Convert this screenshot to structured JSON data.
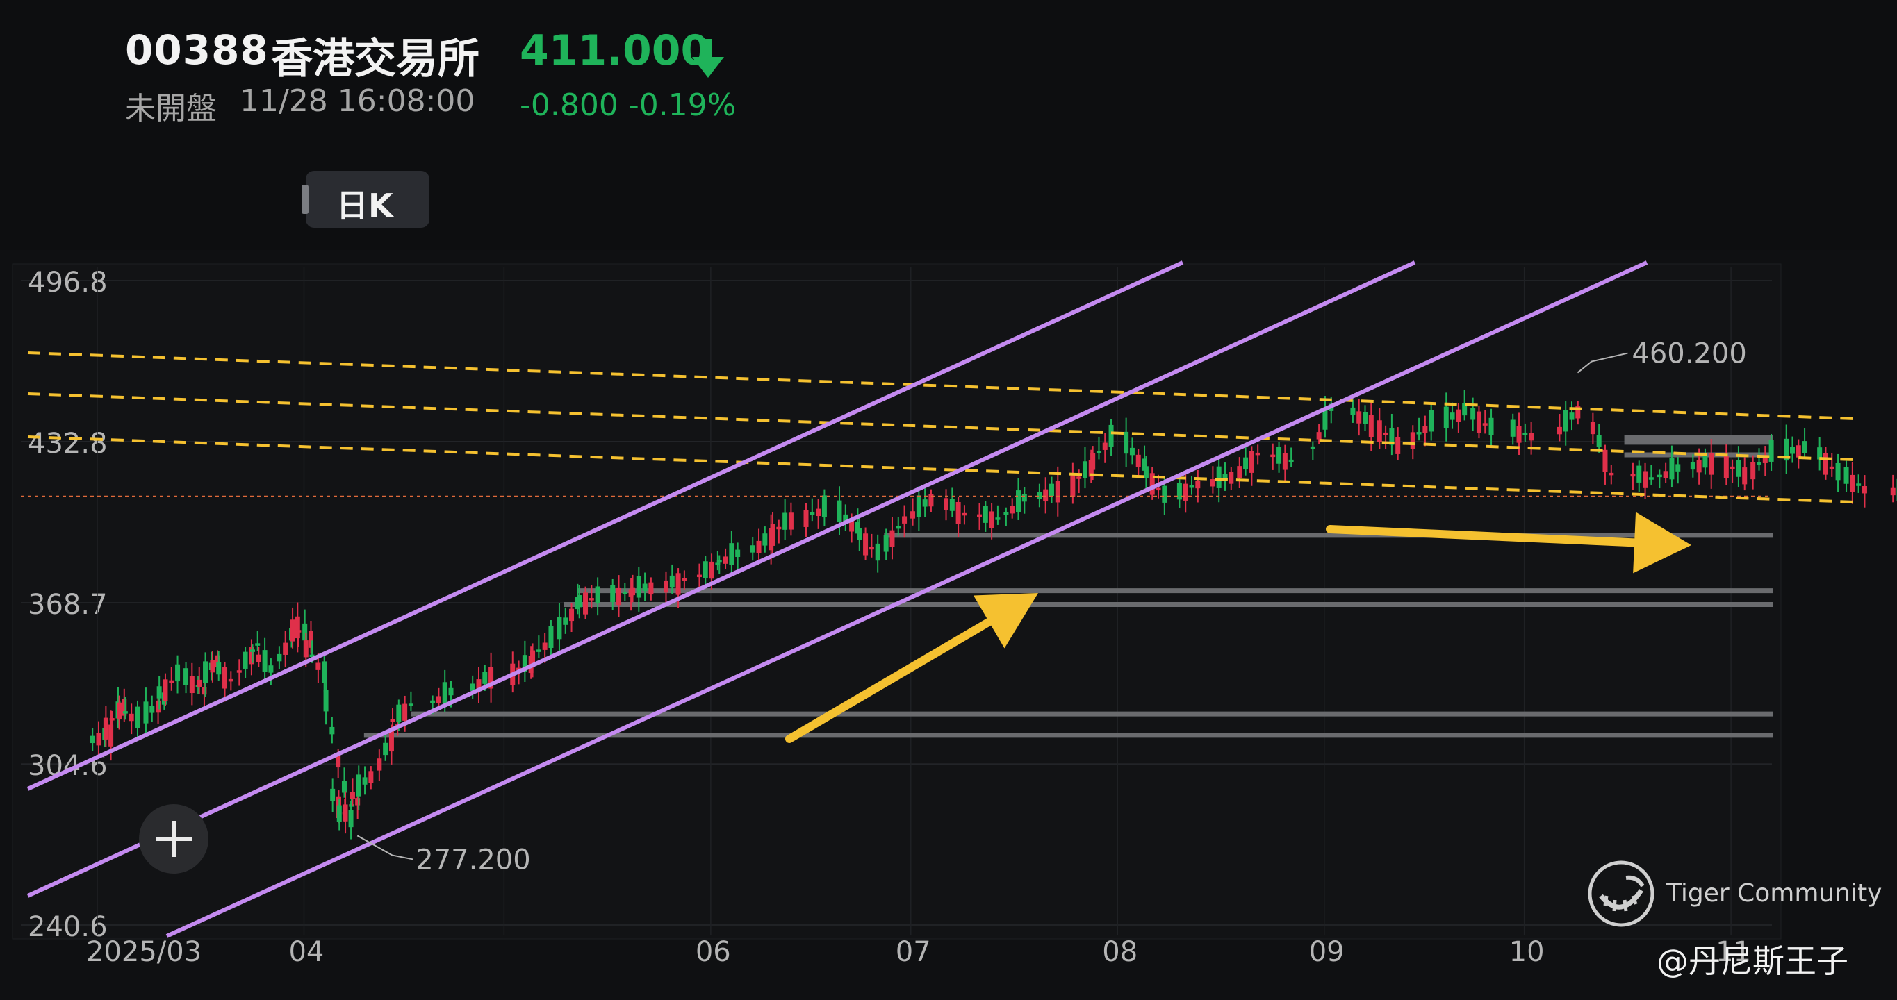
{
  "header": {
    "code": "00388",
    "name": "香港交易所",
    "status": "未開盤",
    "datetime": "11/28 16:08:00",
    "price": "411.000",
    "change": "-0.800 -0.19%",
    "period_chip": "日K",
    "price_color": "#1fb35a"
  },
  "watermark": {
    "text": "Tiger Community",
    "credit": "@丹尼斯王子"
  },
  "icons": {
    "add": "plus-icon",
    "trend": "arrow-down-icon",
    "logo": "tiger-logo-icon"
  },
  "chart_data": {
    "type": "candlestick",
    "x_ticks": [
      "2025/03",
      "04",
      "06",
      "07",
      "08",
      "09",
      "10",
      "11"
    ],
    "y_ticks": [
      496.8,
      432.8,
      368.7,
      304.6,
      240.6
    ],
    "ylim": [
      240.6,
      496.8
    ],
    "last_price": 411.0,
    "annotations": [
      {
        "label": "460.200",
        "value": 460.2,
        "date": "2025-10-09"
      },
      {
        "label": "277.200",
        "value": 277.2,
        "date": "2025-04-09"
      }
    ],
    "up_color": "#e0304a",
    "down_color": "#1fb35a",
    "channel_color": "#c48af0",
    "dash_color": "#f5c130",
    "arrow_color": "#f5c130",
    "grid": true,
    "closes": [
      {
        "d": "2025-03-03",
        "c": 317
      },
      {
        "d": "2025-03-05",
        "c": 328
      },
      {
        "d": "2025-03-07",
        "c": 322
      },
      {
        "d": "2025-03-11",
        "c": 330
      },
      {
        "d": "2025-03-13",
        "c": 340
      },
      {
        "d": "2025-03-17",
        "c": 334
      },
      {
        "d": "2025-03-19",
        "c": 346
      },
      {
        "d": "2025-03-21",
        "c": 338
      },
      {
        "d": "2025-03-25",
        "c": 352
      },
      {
        "d": "2025-03-27",
        "c": 342
      },
      {
        "d": "2025-03-31",
        "c": 360
      },
      {
        "d": "2025-04-02",
        "c": 355
      },
      {
        "d": "2025-04-04",
        "c": 340
      },
      {
        "d": "2025-04-07",
        "c": 295
      },
      {
        "d": "2025-04-08",
        "c": 282
      },
      {
        "d": "2025-04-09",
        "c": 290
      },
      {
        "d": "2025-04-11",
        "c": 300
      },
      {
        "d": "2025-04-15",
        "c": 320
      },
      {
        "d": "2025-04-17",
        "c": 328
      },
      {
        "d": "2025-04-23",
        "c": 333
      },
      {
        "d": "2025-04-29",
        "c": 340
      },
      {
        "d": "2025-05-05",
        "c": 345
      },
      {
        "d": "2025-05-08",
        "c": 354
      },
      {
        "d": "2025-05-12",
        "c": 368
      },
      {
        "d": "2025-05-15",
        "c": 371
      },
      {
        "d": "2025-05-20",
        "c": 373
      },
      {
        "d": "2025-05-23",
        "c": 375
      },
      {
        "d": "2025-05-28",
        "c": 378
      },
      {
        "d": "2025-06-02",
        "c": 384
      },
      {
        "d": "2025-06-05",
        "c": 388
      },
      {
        "d": "2025-06-10",
        "c": 395
      },
      {
        "d": "2025-06-13",
        "c": 402
      },
      {
        "d": "2025-06-18",
        "c": 406
      },
      {
        "d": "2025-06-23",
        "c": 398
      },
      {
        "d": "2025-06-26",
        "c": 388
      },
      {
        "d": "2025-06-30",
        "c": 402
      },
      {
        "d": "2025-07-04",
        "c": 410
      },
      {
        "d": "2025-07-09",
        "c": 404
      },
      {
        "d": "2025-07-14",
        "c": 402
      },
      {
        "d": "2025-07-18",
        "c": 410
      },
      {
        "d": "2025-07-23",
        "c": 414
      },
      {
        "d": "2025-07-28",
        "c": 423
      },
      {
        "d": "2025-07-31",
        "c": 434
      },
      {
        "d": "2025-08-05",
        "c": 423
      },
      {
        "d": "2025-08-08",
        "c": 411
      },
      {
        "d": "2025-08-13",
        "c": 416
      },
      {
        "d": "2025-08-18",
        "c": 419
      },
      {
        "d": "2025-08-22",
        "c": 428
      },
      {
        "d": "2025-08-27",
        "c": 425
      },
      {
        "d": "2025-09-02",
        "c": 446
      },
      {
        "d": "2025-09-08",
        "c": 440
      },
      {
        "d": "2025-09-12",
        "c": 432
      },
      {
        "d": "2025-09-17",
        "c": 440
      },
      {
        "d": "2025-09-22",
        "c": 445
      },
      {
        "d": "2025-09-26",
        "c": 438
      },
      {
        "d": "2025-10-02",
        "c": 435
      },
      {
        "d": "2025-10-09",
        "c": 445
      },
      {
        "d": "2025-10-14",
        "c": 420
      },
      {
        "d": "2025-10-20",
        "c": 418
      },
      {
        "d": "2025-10-24",
        "c": 422
      },
      {
        "d": "2025-10-29",
        "c": 425
      },
      {
        "d": "2025-11-03",
        "c": 420
      },
      {
        "d": "2025-11-07",
        "c": 428
      },
      {
        "d": "2025-11-12",
        "c": 430
      },
      {
        "d": "2025-11-17",
        "c": 420
      },
      {
        "d": "2025-11-21",
        "c": 414
      },
      {
        "d": "2025-11-28",
        "c": 411
      }
    ]
  }
}
